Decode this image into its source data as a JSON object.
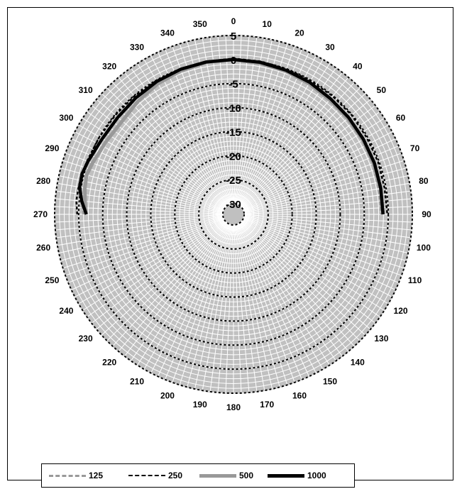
{
  "colors": {
    "background": "#c0c0c0",
    "grid_light": "#ffffff",
    "ring_dash": "#000000",
    "series_125": "#999999",
    "series_250": "#000000",
    "series_500": "#999999",
    "series_1000": "#000000"
  },
  "chart_data": {
    "type": "polar-line",
    "title": "",
    "angle_labels": [
      "0",
      "10",
      "20",
      "30",
      "40",
      "50",
      "60",
      "70",
      "80",
      "90",
      "100",
      "110",
      "120",
      "130",
      "140",
      "150",
      "160",
      "170",
      "180",
      "190",
      "200",
      "210",
      "220",
      "230",
      "240",
      "250",
      "260",
      "270",
      "280",
      "290",
      "300",
      "310",
      "320",
      "330",
      "340",
      "350"
    ],
    "radial_labels": [
      "5",
      "0",
      "-5",
      "-10",
      "-15",
      "-20",
      "-25",
      "-30"
    ],
    "radial_range": [
      -30,
      5
    ],
    "legend_placement": "bottom",
    "series": [
      {
        "name": "125",
        "style": "dashed",
        "angles": [
          270,
          275,
          280,
          285,
          290,
          300,
          310,
          320,
          330,
          340,
          350,
          0,
          10,
          20,
          30,
          40,
          50,
          60,
          70,
          80,
          90
        ],
        "values": [
          -1.0,
          -0.5,
          0.5,
          0.6,
          0.0,
          -0.6,
          -0.8,
          -0.6,
          -0.4,
          -0.2,
          -0.1,
          0.0,
          -0.2,
          -0.4,
          -0.6,
          -0.9,
          -1.1,
          -1.3,
          -1.4,
          -1.5,
          -1.5
        ]
      },
      {
        "name": "250",
        "style": "dashed",
        "angles": [
          270,
          275,
          280,
          285,
          290,
          300,
          310,
          320,
          330,
          340,
          350,
          0,
          10,
          20,
          30,
          40,
          50,
          60,
          70,
          80,
          90
        ],
        "values": [
          0.3,
          0.6,
          0.5,
          0.4,
          0.2,
          0.0,
          -0.1,
          -0.1,
          -0.1,
          0.0,
          0.1,
          0.2,
          0.1,
          0.0,
          -0.1,
          -0.1,
          -0.1,
          -0.2,
          -0.2,
          -0.3,
          -0.2
        ]
      },
      {
        "name": "500",
        "style": "solid-thick-gray",
        "angles": [
          270,
          275,
          280,
          285,
          290,
          300,
          310,
          320,
          330,
          340,
          350,
          0,
          10,
          20,
          30,
          40,
          50,
          60,
          70,
          80,
          90
        ],
        "values": [
          -1.5,
          -1.2,
          -0.8,
          -0.6,
          -1.0,
          -1.7,
          -2.0,
          -1.4,
          -0.8,
          -0.4,
          -0.1,
          0.0,
          -0.3,
          -0.5,
          -0.8,
          -1.1,
          -1.2,
          -1.2,
          -1.2,
          -1.1,
          -1.1
        ]
      },
      {
        "name": "1000",
        "style": "solid-thick-black",
        "angles": [
          270,
          275,
          280,
          285,
          290,
          300,
          310,
          320,
          330,
          340,
          350,
          0,
          10,
          20,
          30,
          40,
          50,
          60,
          70,
          80,
          90
        ],
        "values": [
          -1.6,
          -0.5,
          0.3,
          0.4,
          0.0,
          -0.7,
          -0.8,
          -0.6,
          -0.3,
          -0.1,
          0.0,
          0.0,
          -0.1,
          -0.3,
          -0.5,
          -0.8,
          -0.9,
          -1.0,
          -1.0,
          -1.1,
          -1.1
        ]
      }
    ]
  },
  "legend": {
    "items": [
      {
        "label": "125"
      },
      {
        "label": "250"
      },
      {
        "label": "500"
      },
      {
        "label": "1000"
      }
    ]
  }
}
